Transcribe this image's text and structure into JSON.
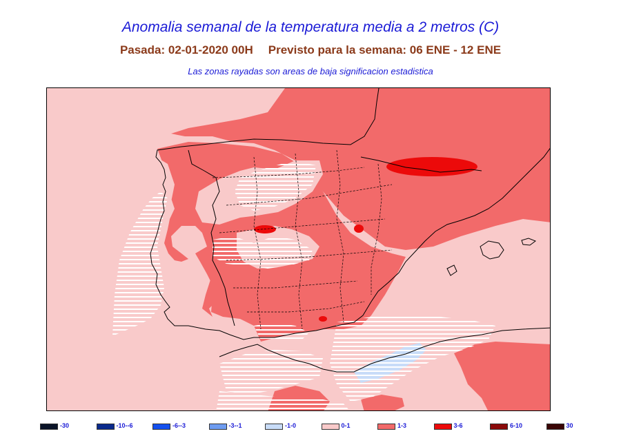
{
  "header": {
    "title": "Anomalia semanal de la temperatura media a 2 metros (C)",
    "run_label": "Pasada: 02-01-2020 00H",
    "forecast_label": "Previsto para la semana:  06 ENE - 12 ENE",
    "note": "Las zonas rayadas son areas de baja significacion estadistica"
  },
  "colors": {
    "anom_0_1": "#f9caca",
    "anom_1_3": "#f26a6a",
    "anom_3_6": "#ec0a0a",
    "anom_m1_0": "#c8dcf8",
    "hatch": "#ffffff",
    "border": "#000000"
  },
  "legend": [
    {
      "label": "-30",
      "color": "#0a1428"
    },
    {
      "label": "-10--6",
      "color": "#0a2a8c"
    },
    {
      "label": "-6--3",
      "color": "#1450ee"
    },
    {
      "label": "-3--1",
      "color": "#6e9cf0"
    },
    {
      "label": "-1-0",
      "color": "#c8dcf8"
    },
    {
      "label": "0-1",
      "color": "#f9caca"
    },
    {
      "label": "1-3",
      "color": "#f26a6a"
    },
    {
      "label": "3-6",
      "color": "#ec0a0a"
    },
    {
      "label": "6-10",
      "color": "#8b0a0a"
    },
    {
      "label": "30",
      "color": "#3a0505"
    }
  ],
  "map": {
    "region": "Iberian Peninsula and Balearic Islands",
    "dominant_anomaly": "1-3",
    "areas_3_6": [
      "Pyrenees",
      "central plateau (small)",
      "southeast (small)"
    ],
    "areas_negative": [
      "Alboran Sea"
    ]
  }
}
